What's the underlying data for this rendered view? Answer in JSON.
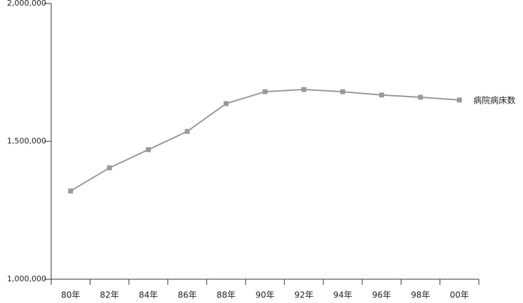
{
  "chart_data": {
    "type": "line",
    "categories": [
      "80年",
      "82年",
      "84年",
      "86年",
      "88年",
      "90年",
      "92年",
      "94年",
      "96年",
      "98年",
      "00年"
    ],
    "series": [
      {
        "name": "病院病床数",
        "color": "#999999",
        "values": [
          1320000,
          1404000,
          1470000,
          1536000,
          1637000,
          1680000,
          1688000,
          1680000,
          1668000,
          1660000,
          1650000
        ]
      }
    ],
    "ylim": [
      1000000,
      2000000
    ],
    "yticks": [
      {
        "value": 1000000,
        "label": "1,000,000"
      },
      {
        "value": 1500000,
        "label": "1,500,000"
      },
      {
        "value": 2000000,
        "label": "2,000,000"
      }
    ],
    "grid": false
  }
}
